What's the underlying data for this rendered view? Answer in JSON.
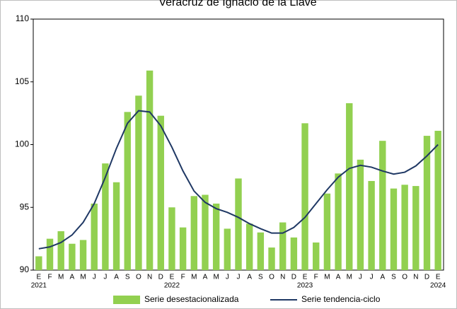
{
  "chart_data": {
    "type": "combo",
    "title": "Veracruz de Ignacio de la Llave",
    "categories": [
      "E",
      "F",
      "M",
      "A",
      "M",
      "J",
      "J",
      "A",
      "S",
      "O",
      "N",
      "D",
      "E",
      "F",
      "M",
      "A",
      "M",
      "J",
      "J",
      "A",
      "S",
      "O",
      "N",
      "D",
      "E",
      "F",
      "M",
      "A",
      "M",
      "J",
      "J",
      "A",
      "S",
      "O",
      "N",
      "D",
      "E"
    ],
    "years": [
      "2021",
      null,
      null,
      null,
      null,
      null,
      null,
      null,
      null,
      null,
      null,
      null,
      "2022",
      null,
      null,
      null,
      null,
      null,
      null,
      null,
      null,
      null,
      null,
      null,
      "2023",
      null,
      null,
      null,
      null,
      null,
      null,
      null,
      null,
      null,
      null,
      null,
      "2024"
    ],
    "series": [
      {
        "name": "Serie desestacionalizada",
        "type": "bar",
        "color": "#92d050",
        "values": [
          91.1,
          92.5,
          93.1,
          92.1,
          92.4,
          95.3,
          98.5,
          97.0,
          102.6,
          103.9,
          105.9,
          102.3,
          95.0,
          93.4,
          95.9,
          96.0,
          95.3,
          93.3,
          97.3,
          93.7,
          93.0,
          91.8,
          93.8,
          92.6,
          101.7,
          92.2,
          96.1,
          97.7,
          103.3,
          98.8,
          97.1,
          100.3,
          96.5,
          96.8,
          96.7,
          100.7,
          101.1
        ]
      },
      {
        "name": "Serie tendencia-ciclo",
        "type": "line",
        "color": "#1f3864",
        "values": [
          91.7,
          91.85,
          92.2,
          92.8,
          93.8,
          95.3,
          97.4,
          99.7,
          101.7,
          102.7,
          102.6,
          101.5,
          99.8,
          97.9,
          96.3,
          95.4,
          94.9,
          94.6,
          94.2,
          93.7,
          93.3,
          92.95,
          92.95,
          93.4,
          94.2,
          95.3,
          96.4,
          97.4,
          98.1,
          98.35,
          98.2,
          97.9,
          97.65,
          97.8,
          98.3,
          99.1,
          100.0
        ]
      }
    ],
    "ylim": [
      90,
      110
    ],
    "yticks": [
      90,
      95,
      100,
      105,
      110
    ],
    "grid": false,
    "legend": "bottom"
  }
}
